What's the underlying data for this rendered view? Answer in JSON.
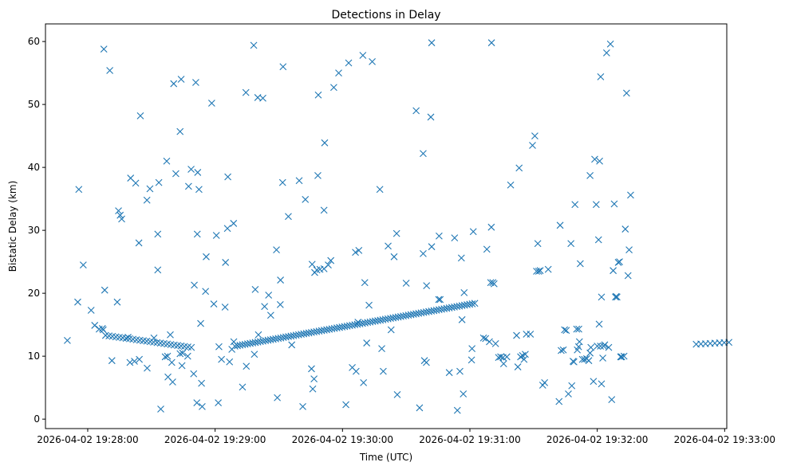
{
  "chart_data": {
    "type": "scatter",
    "title": "Detections in Delay",
    "xlabel": "Time (UTC)",
    "ylabel": "Bistatic Delay (km)",
    "x_unit": "seconds since 2026-04-02 19:27:00",
    "xlim": [
      40.1,
      361.0
    ],
    "ylim": [
      -1.5,
      62.8
    ],
    "xticks": [
      {
        "value": 60,
        "label": "2026-04-02 19:28:00"
      },
      {
        "value": 120,
        "label": "2026-04-02 19:29:00"
      },
      {
        "value": 180,
        "label": "2026-04-02 19:30:00"
      },
      {
        "value": 240,
        "label": "2026-04-02 19:31:00"
      },
      {
        "value": 300,
        "label": "2026-04-02 19:32:00"
      },
      {
        "value": 360,
        "label": "2026-04-02 19:33:00"
      }
    ],
    "yticks": [
      0,
      10,
      20,
      30,
      40,
      50,
      60
    ],
    "marker": "x",
    "color": "#1f77b4",
    "track_segments": [
      {
        "name": "track-1",
        "x": [
          68.4,
          108.8
        ],
        "y": [
          13.3,
          11.4
        ],
        "count": 26
      },
      {
        "name": "track-2",
        "x": [
          129.3,
          242.3
        ],
        "y": [
          11.6,
          18.4
        ],
        "count": 95
      },
      {
        "name": "track-3",
        "x": [
          346.6,
          362.0
        ],
        "y": [
          11.9,
          12.2
        ],
        "count": 8
      }
    ],
    "points": [
      [
        55.8,
        36.5
      ],
      [
        50.4,
        12.5
      ],
      [
        55.3,
        18.6
      ],
      [
        57.9,
        24.5
      ],
      [
        63.3,
        14.9
      ],
      [
        61.6,
        17.3
      ],
      [
        65.4,
        14.3
      ],
      [
        66.9,
        14.4
      ],
      [
        67.3,
        14.2
      ],
      [
        68.0,
        20.5
      ],
      [
        67.6,
        58.8
      ],
      [
        70.4,
        55.4
      ],
      [
        71.4,
        9.3
      ],
      [
        73.9,
        18.6
      ],
      [
        74.5,
        33.1
      ],
      [
        75.3,
        32.4
      ],
      [
        76.0,
        31.8
      ],
      [
        80.2,
        38.3
      ],
      [
        82.6,
        37.5
      ],
      [
        84.1,
        28.0
      ],
      [
        84.8,
        48.2
      ],
      [
        79.0,
        13.0
      ],
      [
        79.9,
        9.0
      ],
      [
        82.0,
        9.2
      ],
      [
        84.3,
        9.5
      ],
      [
        88.0,
        8.1
      ],
      [
        87.9,
        34.8
      ],
      [
        89.3,
        36.6
      ],
      [
        91.2,
        12.9
      ],
      [
        93.0,
        23.7
      ],
      [
        93.0,
        29.4
      ],
      [
        93.5,
        37.6
      ],
      [
        94.4,
        1.6
      ],
      [
        96.5,
        9.9
      ],
      [
        97.6,
        10.0
      ],
      [
        97.2,
        41.0
      ],
      [
        97.8,
        6.7
      ],
      [
        98.9,
        13.4
      ],
      [
        99.6,
        9.0
      ],
      [
        100.0,
        5.9
      ],
      [
        100.5,
        53.3
      ],
      [
        101.5,
        39.0
      ],
      [
        104.4,
        8.5
      ],
      [
        107.1,
        10.0
      ],
      [
        103.5,
        10.4
      ],
      [
        103.5,
        45.7
      ],
      [
        104.0,
        54.0
      ],
      [
        104.7,
        10.5
      ],
      [
        107.5,
        37.0
      ],
      [
        108.7,
        39.7
      ],
      [
        109.9,
        7.2
      ],
      [
        110.2,
        21.3
      ],
      [
        110.9,
        53.5
      ],
      [
        111.6,
        29.4
      ],
      [
        111.8,
        39.2
      ],
      [
        112.4,
        36.5
      ],
      [
        113.2,
        15.2
      ],
      [
        113.6,
        5.7
      ],
      [
        113.9,
        2.0
      ],
      [
        111.4,
        2.6
      ],
      [
        115.5,
        20.3
      ],
      [
        115.8,
        25.8
      ],
      [
        118.4,
        50.2
      ],
      [
        119.4,
        18.3
      ],
      [
        120.6,
        29.2
      ],
      [
        121.5,
        2.6
      ],
      [
        121.8,
        11.5
      ],
      [
        123.0,
        9.5
      ],
      [
        124.7,
        17.8
      ],
      [
        124.9,
        24.9
      ],
      [
        125.8,
        30.3
      ],
      [
        126.0,
        38.5
      ],
      [
        126.8,
        9.1
      ],
      [
        127.9,
        11.1
      ],
      [
        128.7,
        31.1
      ],
      [
        128.8,
        12.3
      ],
      [
        132.9,
        5.1
      ],
      [
        134.7,
        8.4
      ],
      [
        134.5,
        51.9
      ],
      [
        138.2,
        59.4
      ],
      [
        138.5,
        10.3
      ],
      [
        138.9,
        20.6
      ],
      [
        140.4,
        13.4
      ],
      [
        140.1,
        51.1
      ],
      [
        142.5,
        51.0
      ],
      [
        143.3,
        17.9
      ],
      [
        145.2,
        19.7
      ],
      [
        146.2,
        16.5
      ],
      [
        148.9,
        26.9
      ],
      [
        149.3,
        3.4
      ],
      [
        150.7,
        18.2
      ],
      [
        150.8,
        22.1
      ],
      [
        151.8,
        37.6
      ],
      [
        152.0,
        56.0
      ],
      [
        154.5,
        32.2
      ],
      [
        156.1,
        11.8
      ],
      [
        159.6,
        37.9
      ],
      [
        161.3,
        2.0
      ],
      [
        162.5,
        34.9
      ],
      [
        165.4,
        8.0
      ],
      [
        166.0,
        4.8
      ],
      [
        165.7,
        24.6
      ],
      [
        166.6,
        6.4
      ],
      [
        166.9,
        23.3
      ],
      [
        167.9,
        23.7
      ],
      [
        168.4,
        38.7
      ],
      [
        168.6,
        51.5
      ],
      [
        169.4,
        23.8
      ],
      [
        171.3,
        33.2
      ],
      [
        171.6,
        43.9
      ],
      [
        171.3,
        23.9
      ],
      [
        173.3,
        24.5
      ],
      [
        174.5,
        25.2
      ],
      [
        175.9,
        52.7
      ],
      [
        178.2,
        55.0
      ],
      [
        181.6,
        2.3
      ],
      [
        182.9,
        56.6
      ],
      [
        184.6,
        8.2
      ],
      [
        186.1,
        26.5
      ],
      [
        187.7,
        26.8
      ],
      [
        187.3,
        15.4
      ],
      [
        186.4,
        7.6
      ],
      [
        189.6,
        57.8
      ],
      [
        189.9,
        5.8
      ],
      [
        190.5,
        21.7
      ],
      [
        191.4,
        12.1
      ],
      [
        192.5,
        18.1
      ],
      [
        194.0,
        56.8
      ],
      [
        197.6,
        36.5
      ],
      [
        198.5,
        11.2
      ],
      [
        199.2,
        7.6
      ],
      [
        201.5,
        27.5
      ],
      [
        202.9,
        14.2
      ],
      [
        204.3,
        25.8
      ],
      [
        205.5,
        29.5
      ],
      [
        205.8,
        3.9
      ],
      [
        210.0,
        21.6
      ],
      [
        214.7,
        49.0
      ],
      [
        216.3,
        1.8
      ],
      [
        218.0,
        26.3
      ],
      [
        218.0,
        42.2
      ],
      [
        218.6,
        9.3
      ],
      [
        219.5,
        9.0
      ],
      [
        219.6,
        21.2
      ],
      [
        222.0,
        27.4
      ],
      [
        221.6,
        48.0
      ],
      [
        222.0,
        59.8
      ],
      [
        225.5,
        29.1
      ],
      [
        225.3,
        19.0
      ],
      [
        226.0,
        19.0
      ],
      [
        230.3,
        7.4
      ],
      [
        232.8,
        28.8
      ],
      [
        234.1,
        1.4
      ],
      [
        235.3,
        7.6
      ],
      [
        236.0,
        25.6
      ],
      [
        236.3,
        15.8
      ],
      [
        236.9,
        4.0
      ],
      [
        237.3,
        20.1
      ],
      [
        240.8,
        9.4
      ],
      [
        241.0,
        11.2
      ],
      [
        241.6,
        29.8
      ],
      [
        246.4,
        12.9
      ],
      [
        247.4,
        12.8
      ],
      [
        248.0,
        27.0
      ],
      [
        249.2,
        12.3
      ],
      [
        249.8,
        21.7
      ],
      [
        250.1,
        30.5
      ],
      [
        250.2,
        59.8
      ],
      [
        250.8,
        21.7
      ],
      [
        251.4,
        21.5
      ],
      [
        252.1,
        12.0
      ],
      [
        253.5,
        9.8
      ],
      [
        254.5,
        9.9
      ],
      [
        255.6,
        9.8
      ],
      [
        255.9,
        8.8
      ],
      [
        257.4,
        9.9
      ],
      [
        259.2,
        37.2
      ],
      [
        262.0,
        13.3
      ],
      [
        262.6,
        8.3
      ],
      [
        263.2,
        39.9
      ],
      [
        263.9,
        9.9
      ],
      [
        264.8,
        10.1
      ],
      [
        265.5,
        9.5
      ],
      [
        266.1,
        10.3
      ],
      [
        266.6,
        13.5
      ],
      [
        268.5,
        13.5
      ],
      [
        269.5,
        43.5
      ],
      [
        270.6,
        45.0
      ],
      [
        271.4,
        23.5
      ],
      [
        272.0,
        27.9
      ],
      [
        272.4,
        23.5
      ],
      [
        273.1,
        23.6
      ],
      [
        274.3,
        5.4
      ],
      [
        275.2,
        5.8
      ],
      [
        276.9,
        23.8
      ],
      [
        282.0,
        2.8
      ],
      [
        282.5,
        30.8
      ],
      [
        283.0,
        10.9
      ],
      [
        284.0,
        11.0
      ],
      [
        284.6,
        14.2
      ],
      [
        285.4,
        14.1
      ],
      [
        286.4,
        4.0
      ],
      [
        287.6,
        27.9
      ],
      [
        288.0,
        5.3
      ],
      [
        288.6,
        9.2
      ],
      [
        289.0,
        9.1
      ],
      [
        289.5,
        34.1
      ],
      [
        290.3,
        14.3
      ],
      [
        291.3,
        14.3
      ],
      [
        290.6,
        11.0
      ],
      [
        291.2,
        11.5
      ],
      [
        291.6,
        12.3
      ],
      [
        292.0,
        24.7
      ],
      [
        293.0,
        9.5
      ],
      [
        294.0,
        9.5
      ],
      [
        295.0,
        9.6
      ],
      [
        296.0,
        9.3
      ],
      [
        296.6,
        10.5
      ],
      [
        296.6,
        38.7
      ],
      [
        297.0,
        11.4
      ],
      [
        298.2,
        6.0
      ],
      [
        298.8,
        41.3
      ],
      [
        299.5,
        34.1
      ],
      [
        300.0,
        11.6
      ],
      [
        300.6,
        28.5
      ],
      [
        300.9,
        15.1
      ],
      [
        301.1,
        41.0
      ],
      [
        301.5,
        11.6
      ],
      [
        301.6,
        54.4
      ],
      [
        302.6,
        9.7
      ],
      [
        302.0,
        19.4
      ],
      [
        302.0,
        5.6
      ],
      [
        303.0,
        11.6
      ],
      [
        303.5,
        11.8
      ],
      [
        304.4,
        58.2
      ],
      [
        305.4,
        11.4
      ],
      [
        306.2,
        59.6
      ],
      [
        306.8,
        3.1
      ],
      [
        307.5,
        23.6
      ],
      [
        308.0,
        34.2
      ],
      [
        308.6,
        19.4
      ],
      [
        308.9,
        19.5
      ],
      [
        309.3,
        19.4
      ],
      [
        309.9,
        24.9
      ],
      [
        310.5,
        25.0
      ],
      [
        311.0,
        9.9
      ],
      [
        311.5,
        9.9
      ],
      [
        312.6,
        10.0
      ],
      [
        313.2,
        30.2
      ],
      [
        313.8,
        51.8
      ],
      [
        314.5,
        22.8
      ],
      [
        315.0,
        26.9
      ],
      [
        315.7,
        35.6
      ]
    ]
  }
}
